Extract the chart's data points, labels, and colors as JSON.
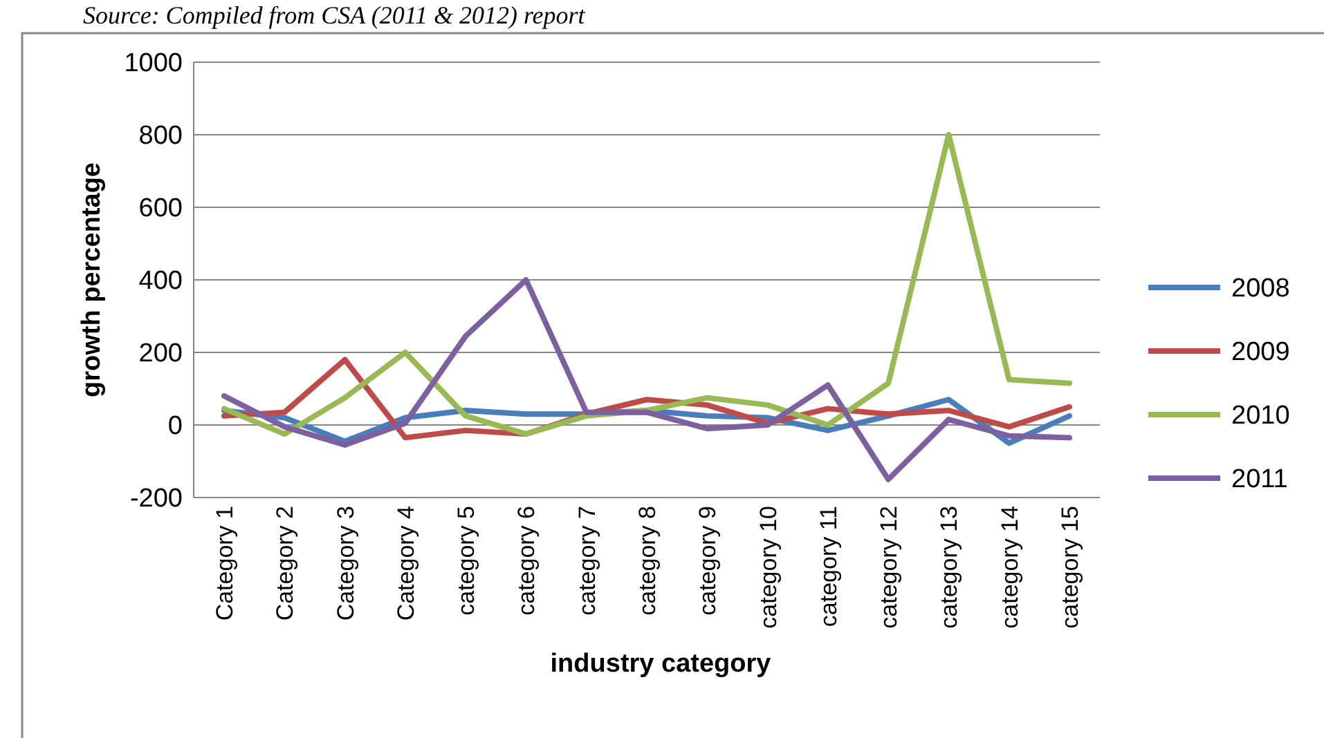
{
  "chart_data": {
    "type": "line",
    "xlabel": "industry category",
    "ylabel": "growth percentage",
    "annotations": [
      "Source: Compiled from CSA (2011 & 2012) report"
    ],
    "categories": [
      "Category 1",
      "Category 2",
      "Category 3",
      "Category 4",
      "category 5",
      "category 6",
      "category 7",
      "category 8",
      "category 9",
      "category 10",
      "category 11",
      "category 12",
      "category 13",
      "category 14",
      "category 15"
    ],
    "series": [
      {
        "name": "2008",
        "color": "#4a7ebb",
        "values": [
          40,
          20,
          -45,
          20,
          40,
          30,
          30,
          40,
          25,
          20,
          -15,
          25,
          70,
          -50,
          25
        ]
      },
      {
        "name": "2009",
        "color": "#be4b48",
        "values": [
          25,
          35,
          180,
          -35,
          -15,
          -25,
          30,
          70,
          55,
          5,
          45,
          30,
          40,
          -5,
          50
        ]
      },
      {
        "name": "2010",
        "color": "#98b954",
        "values": [
          45,
          -25,
          75,
          200,
          25,
          -25,
          25,
          40,
          75,
          55,
          0,
          115,
          800,
          125,
          115
        ]
      },
      {
        "name": "2011",
        "color": "#7d60a0",
        "values": [
          80,
          -5,
          -55,
          5,
          245,
          400,
          35,
          35,
          -10,
          0,
          110,
          -150,
          15,
          -30,
          -35
        ]
      }
    ],
    "ylim": [
      -200,
      1000
    ],
    "yticks": [
      -200,
      0,
      200,
      400,
      600,
      800,
      1000
    ],
    "grid": "y",
    "legend": "right",
    "marker": "none",
    "line_style": "solid"
  }
}
